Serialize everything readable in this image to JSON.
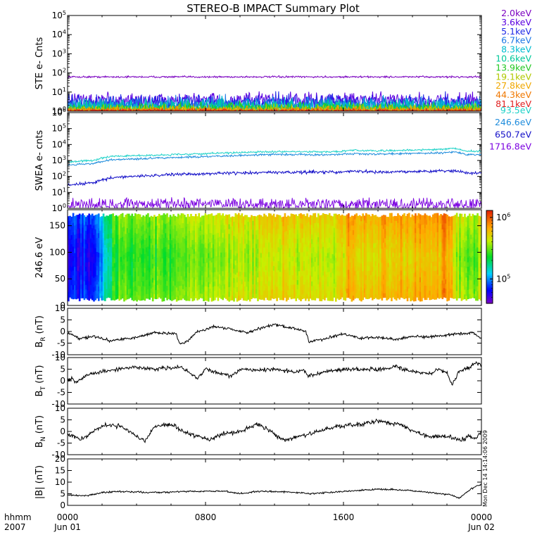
{
  "title": "STEREO-B IMPACT Summary Plot",
  "x_axis": {
    "row_label_1": "hhmm",
    "row_label_2": "2007",
    "ticks": [
      {
        "time": "0000",
        "date": "Jun 01",
        "hours": 0
      },
      {
        "time": "0800",
        "date": "",
        "hours": 8
      },
      {
        "time": "1600",
        "date": "",
        "hours": 16
      },
      {
        "time": "0000",
        "date": "Jun 02",
        "hours": 24
      }
    ]
  },
  "timestamp_note": "Mon Dec 14 14:14:06 2009",
  "colorbar": {
    "ticks": [
      {
        "label": "10",
        "exp": "5",
        "value": 100000
      },
      {
        "label": "10",
        "exp": "6",
        "value": 1000000
      }
    ],
    "range": [
      40000,
      1300000
    ],
    "scale": "log",
    "palette": "rainbow"
  },
  "chart_data": [
    {
      "id": "ste",
      "type": "line",
      "ylabel": "STE e- Cnts",
      "yscale": "log",
      "ylim": [
        1,
        100000
      ],
      "yticks": [
        {
          "label": "10",
          "exp": "0",
          "value": 1
        },
        {
          "label": "10",
          "exp": "1",
          "value": 10
        },
        {
          "label": "10",
          "exp": "2",
          "value": 100
        },
        {
          "label": "10",
          "exp": "3",
          "value": 1000
        },
        {
          "label": "10",
          "exp": "4",
          "value": 10000
        },
        {
          "label": "10",
          "exp": "5",
          "value": 100000
        }
      ],
      "x_range_hours": [
        0,
        24
      ],
      "series": [
        {
          "name": "2.0keV",
          "color": "#7a00c0",
          "base": 62,
          "noise": 0.04
        },
        {
          "name": "3.6keV",
          "color": "#5a00e0",
          "base": 3.6,
          "noise": 0.35
        },
        {
          "name": "5.1keV",
          "color": "#1e28e6",
          "base": 2.5,
          "noise": 0.4
        },
        {
          "name": "6.7keV",
          "color": "#1e78e6",
          "base": 1.9,
          "noise": 0.4
        },
        {
          "name": "8.3keV",
          "color": "#00bcd0",
          "base": 1.6,
          "noise": 0.4
        },
        {
          "name": "10.6keV",
          "color": "#00c89a",
          "base": 1.4,
          "noise": 0.35
        },
        {
          "name": "13.9keV",
          "color": "#22c822",
          "base": 1.25,
          "noise": 0.3
        },
        {
          "name": "19.1keV",
          "color": "#b0c800",
          "base": 1.15,
          "noise": 0.25
        },
        {
          "name": "27.8keV",
          "color": "#f0a800",
          "base": 1.08,
          "noise": 0.2
        },
        {
          "name": "44.3keV",
          "color": "#f07800",
          "base": 1.04,
          "noise": 0.15
        },
        {
          "name": "81.1keV",
          "color": "#e02020",
          "base": 1.02,
          "noise": 0.1
        }
      ]
    },
    {
      "id": "swea",
      "type": "line",
      "ylabel": "SWEA e- cnts",
      "yscale": "log",
      "ylim": [
        1,
        1000000
      ],
      "yticks": [
        {
          "label": "10",
          "exp": "0",
          "value": 1
        },
        {
          "label": "10",
          "exp": "1",
          "value": 10
        },
        {
          "label": "10",
          "exp": "2",
          "value": 100
        },
        {
          "label": "10",
          "exp": "3",
          "value": 1000
        },
        {
          "label": "10",
          "exp": "4",
          "value": 10000
        },
        {
          "label": "10",
          "exp": "5",
          "value": 100000
        },
        {
          "label": "10",
          "exp": "6",
          "value": 1000000
        }
      ],
      "x_range_hours": [
        0,
        24
      ],
      "series": [
        {
          "name": "1716.8eV",
          "color": "#7a00e0",
          "kind": "noise",
          "profile": [
            [
              0,
              2.5
            ],
            [
              24,
              2.5
            ]
          ],
          "noise": 0.5
        },
        {
          "name": "650.7eV",
          "color": "#1410c8",
          "profile": [
            [
              0,
              30
            ],
            [
              1.5,
              40
            ],
            [
              2.5,
              80
            ],
            [
              6,
              130
            ],
            [
              9,
              160
            ],
            [
              12,
              180
            ],
            [
              15.5,
              190
            ],
            [
              16.5,
              210
            ],
            [
              18,
              190
            ],
            [
              21,
              210
            ],
            [
              22.5,
              230
            ],
            [
              23.2,
              160
            ],
            [
              24,
              170
            ]
          ],
          "noise": 0.08
        },
        {
          "name": "246.6eV",
          "color": "#1e8cdc",
          "profile": [
            [
              0,
              500
            ],
            [
              1.5,
              650
            ],
            [
              2.5,
              1100
            ],
            [
              6,
              1500
            ],
            [
              9,
              1900
            ],
            [
              12,
              2400
            ],
            [
              15.5,
              2300
            ],
            [
              16.5,
              2700
            ],
            [
              18,
              2500
            ],
            [
              21,
              2900
            ],
            [
              22.5,
              3300
            ],
            [
              23.2,
              2300
            ],
            [
              24,
              2400
            ]
          ],
          "noise": 0.05
        },
        {
          "name": "93.5eV",
          "color": "#1ed2c8",
          "profile": [
            [
              0,
              800
            ],
            [
              1.5,
              1000
            ],
            [
              2.5,
              1800
            ],
            [
              6,
              2300
            ],
            [
              9,
              2900
            ],
            [
              12,
              3600
            ],
            [
              15.5,
              3500
            ],
            [
              16.5,
              4300
            ],
            [
              18,
              4000
            ],
            [
              21,
              4700
            ],
            [
              22.5,
              5600
            ],
            [
              23.2,
              3700
            ],
            [
              24,
              3900
            ]
          ],
          "noise": 0.05
        }
      ]
    },
    {
      "id": "pad",
      "type": "heatmap",
      "ylabel": "246.6 eV",
      "ylim": [
        0,
        180
      ],
      "yticks": [
        0,
        50,
        100,
        150
      ],
      "y_extent": [
        10,
        170
      ],
      "x_range_hours": [
        0,
        24
      ],
      "zscale": "log",
      "zlim": [
        40000,
        1300000
      ],
      "colorbar_profile": [
        [
          0,
          70000
        ],
        [
          1.5,
          75000
        ],
        [
          2.2,
          130000
        ],
        [
          2.7,
          280000
        ],
        [
          6,
          330000
        ],
        [
          9,
          420000
        ],
        [
          12,
          500000
        ],
        [
          15.5,
          500000
        ],
        [
          16.5,
          620000
        ],
        [
          18,
          620000
        ],
        [
          21,
          680000
        ],
        [
          22,
          800000
        ],
        [
          22.7,
          350000
        ],
        [
          24,
          380000
        ]
      ]
    },
    {
      "id": "br",
      "type": "line",
      "ylabel": "B",
      "ylabel_sub": "R",
      "ylabel_unit": "(nT)",
      "ylim": [
        -10,
        10
      ],
      "yticks": [
        -10,
        -5,
        0,
        5,
        10
      ],
      "x_range_hours": [
        0,
        24
      ],
      "series": [
        {
          "color": "#000000",
          "noise": 0.5,
          "profile": [
            [
              0,
              -0.5
            ],
            [
              0.7,
              -3
            ],
            [
              1.5,
              -2
            ],
            [
              2.5,
              -4
            ],
            [
              4,
              -2.5
            ],
            [
              5,
              -0.5
            ],
            [
              6.3,
              -1
            ],
            [
              6.5,
              -5.5
            ],
            [
              7,
              -4
            ],
            [
              7.5,
              0
            ],
            [
              8.5,
              2
            ],
            [
              9.5,
              1
            ],
            [
              10.5,
              -0.5
            ],
            [
              11,
              1
            ],
            [
              12,
              3
            ],
            [
              13,
              1.5
            ],
            [
              13.8,
              0
            ],
            [
              14,
              -4.5
            ],
            [
              15,
              -3
            ],
            [
              16,
              -1
            ],
            [
              17,
              -3
            ],
            [
              18,
              -2.5
            ],
            [
              19,
              -3.5
            ],
            [
              20,
              -2
            ],
            [
              21,
              -2.5
            ],
            [
              22.5,
              -1
            ],
            [
              23.5,
              -0.5
            ],
            [
              24,
              -3
            ]
          ]
        }
      ]
    },
    {
      "id": "bt",
      "type": "line",
      "ylabel": "B",
      "ylabel_sub": "T",
      "ylabel_unit": "(nT)",
      "ylim": [
        -10,
        10
      ],
      "yticks": [
        -10,
        -5,
        0,
        5,
        10
      ],
      "x_range_hours": [
        0,
        24
      ],
      "series": [
        {
          "color": "#000000",
          "noise": 0.7,
          "profile": [
            [
              0,
              0
            ],
            [
              0.3,
              1
            ],
            [
              0.5,
              -1
            ],
            [
              1,
              2
            ],
            [
              2,
              4
            ],
            [
              3,
              5
            ],
            [
              4,
              6
            ],
            [
              5,
              5
            ],
            [
              6.5,
              6
            ],
            [
              7,
              4
            ],
            [
              7.5,
              1
            ],
            [
              8,
              5
            ],
            [
              9,
              3
            ],
            [
              9.5,
              2
            ],
            [
              10,
              5
            ],
            [
              11,
              4.5
            ],
            [
              12,
              5
            ],
            [
              13,
              4
            ],
            [
              13.7,
              4
            ],
            [
              14,
              2
            ],
            [
              15,
              4
            ],
            [
              16,
              5
            ],
            [
              18,
              5
            ],
            [
              19,
              6
            ],
            [
              20,
              4
            ],
            [
              21,
              3
            ],
            [
              21.5,
              5
            ],
            [
              22,
              3.5
            ],
            [
              22.3,
              -2
            ],
            [
              22.7,
              4
            ],
            [
              23.3,
              6
            ],
            [
              23.7,
              8
            ],
            [
              24,
              6.5
            ]
          ]
        }
      ]
    },
    {
      "id": "bn",
      "type": "line",
      "ylabel": "B",
      "ylabel_sub": "N",
      "ylabel_unit": "(nT)",
      "ylim": [
        -10,
        10
      ],
      "yticks": [
        -10,
        -5,
        0,
        5,
        10
      ],
      "x_range_hours": [
        0,
        24
      ],
      "series": [
        {
          "color": "#000000",
          "noise": 0.8,
          "profile": [
            [
              0,
              -1
            ],
            [
              0.7,
              -3.5
            ],
            [
              1.5,
              0
            ],
            [
              2.2,
              3
            ],
            [
              3.2,
              2
            ],
            [
              4,
              -2
            ],
            [
              4.5,
              -4
            ],
            [
              5,
              2
            ],
            [
              6,
              3
            ],
            [
              6.8,
              0
            ],
            [
              7.5,
              -2
            ],
            [
              8.2,
              -3.5
            ],
            [
              9,
              -1
            ],
            [
              10,
              0
            ],
            [
              11,
              3
            ],
            [
              11.8,
              0
            ],
            [
              12.5,
              -4
            ],
            [
              13.5,
              -2
            ],
            [
              14.5,
              0
            ],
            [
              15.5,
              2
            ],
            [
              17,
              3
            ],
            [
              18,
              4.5
            ],
            [
              19.3,
              3
            ],
            [
              20,
              0.5
            ],
            [
              21,
              -2.5
            ],
            [
              22,
              -2
            ],
            [
              22.8,
              -4
            ],
            [
              23.3,
              -2
            ],
            [
              23.7,
              -3
            ],
            [
              24,
              0
            ]
          ]
        }
      ]
    },
    {
      "id": "bmag",
      "type": "line",
      "ylabel": "|B|",
      "ylabel_unit": "(nT)",
      "ylim": [
        0,
        20
      ],
      "yticks": [
        0,
        5,
        10,
        15,
        20
      ],
      "x_range_hours": [
        0,
        24
      ],
      "series": [
        {
          "color": "#000000",
          "noise": 0.3,
          "profile": [
            [
              0,
              4.5
            ],
            [
              1,
              4
            ],
            [
              2,
              5.5
            ],
            [
              3,
              6
            ],
            [
              5,
              5.5
            ],
            [
              7,
              6
            ],
            [
              9,
              6.2
            ],
            [
              10,
              5
            ],
            [
              11,
              6
            ],
            [
              12,
              6
            ],
            [
              13.5,
              5.5
            ],
            [
              14,
              5
            ],
            [
              15,
              5.5
            ],
            [
              16,
              6
            ],
            [
              18,
              7
            ],
            [
              19,
              6.8
            ],
            [
              20,
              6.3
            ],
            [
              21,
              5.5
            ],
            [
              22.3,
              4.5
            ],
            [
              22.7,
              3
            ],
            [
              23.2,
              6
            ],
            [
              23.6,
              8
            ],
            [
              24,
              9
            ]
          ]
        }
      ]
    }
  ]
}
